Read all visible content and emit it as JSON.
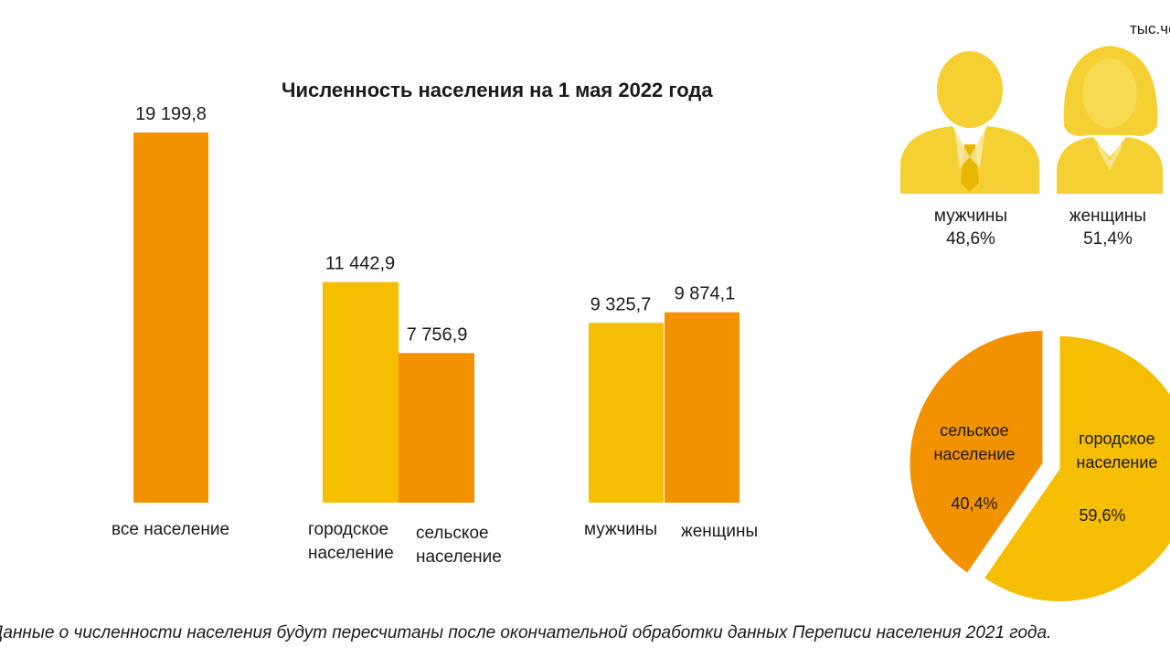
{
  "unit_label": "тыс.чел.",
  "chart_data": {
    "type": "bar",
    "title": "Численность населения на 1 мая 2022 года",
    "bars": [
      {
        "category": "все население",
        "value": 19199.8,
        "value_label": "19 199,8",
        "color": "#F39200"
      },
      {
        "category": "городское население",
        "value": 11442.9,
        "value_label": "11 442,9",
        "color": "#F5BE00"
      },
      {
        "category": "сельское население",
        "value": 7756.9,
        "value_label": "7 756,9",
        "color": "#F39200"
      },
      {
        "category": "мужчины",
        "value": 9325.7,
        "value_label": "9 325,7",
        "color": "#F5BE00"
      },
      {
        "category": "женщины",
        "value": 9874.1,
        "value_label": "9 874,1",
        "color": "#F39200"
      }
    ],
    "category_lines": [
      [
        "все население"
      ],
      [
        "городское",
        "население"
      ],
      [
        "сельское",
        "население"
      ],
      [
        "мужчины"
      ],
      [
        "женщины"
      ]
    ],
    "pie": {
      "type": "pie",
      "slices": [
        {
          "label_lines": [
            "сельское",
            "население"
          ],
          "value": 40.4,
          "value_label": "40,4%",
          "color": "#F39200"
        },
        {
          "label_lines": [
            "городское",
            "население"
          ],
          "value": 59.6,
          "value_label": "59,6%",
          "color": "#F5BE00"
        }
      ]
    }
  },
  "gender": {
    "men": {
      "label": "мужчины",
      "value": "48,6%"
    },
    "women": {
      "label": "женщины",
      "value": "51,4%"
    },
    "icon_color": "#F5D033"
  },
  "footnote": "Данные о численности населения будут пересчитаны после окончательной обработки данных Переписи населения 2021 года."
}
